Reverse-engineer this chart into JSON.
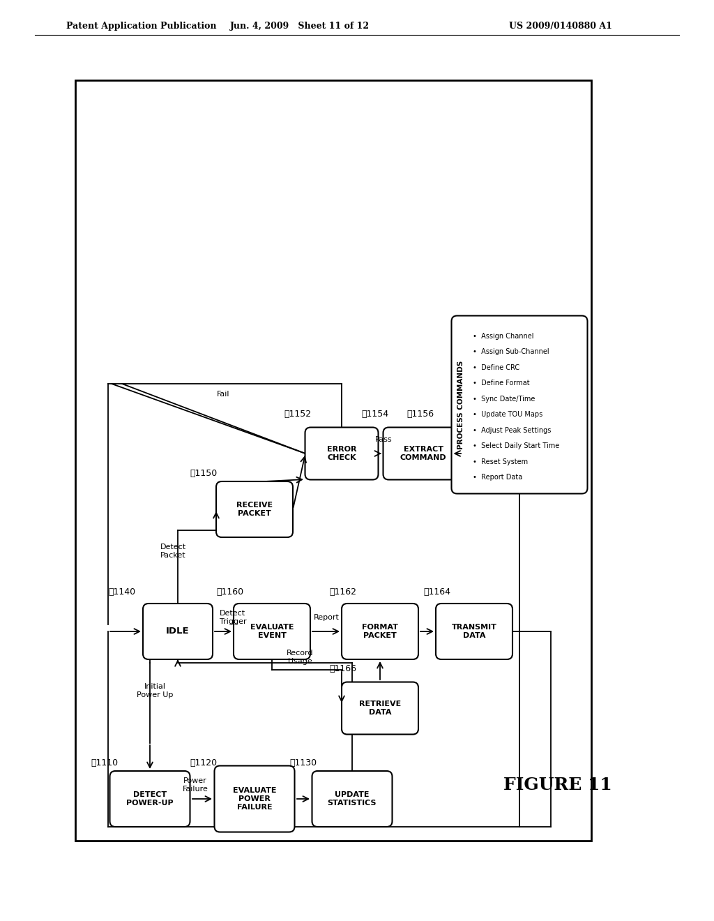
{
  "background_color": "#ffffff",
  "header_left": "Patent Application Publication",
  "header_center": "Jun. 4, 2009   Sheet 11 of 12",
  "header_right": "US 2009/0140880 A1",
  "figure_label": "FIGURE 11",
  "process_commands_items": [
    "Assign Channel",
    "Assign Sub-Channel",
    "Define CRC",
    "Define Format",
    "Sync Date/Time",
    "Update TOU Maps",
    "Adjust Peak Settings",
    "Select Daily Start Time",
    "Reset System",
    "Report Data"
  ]
}
